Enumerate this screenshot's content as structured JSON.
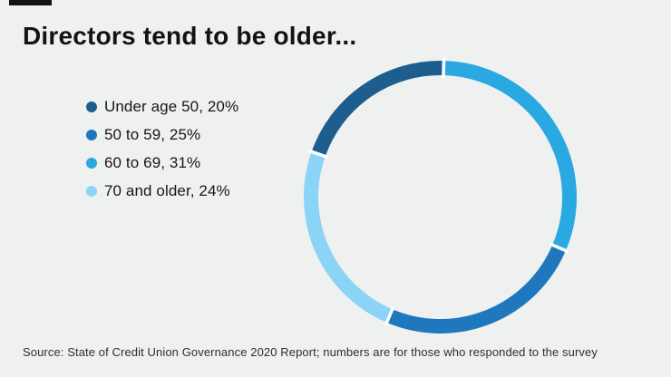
{
  "page": {
    "background": "#eff1f0"
  },
  "header": {
    "title": "Directors tend to be older...",
    "accent_bar_color": "#121212"
  },
  "footer": {
    "source": "Source: State of Credit Union Governance 2020 Report; numbers are for those who responded to the survey"
  },
  "chart_data": {
    "type": "pie",
    "subtype": "donut",
    "title": "Directors tend to be older...",
    "categories": [
      "Under age 50",
      "50 to 59",
      "60 to 69",
      "70 and older"
    ],
    "values": [
      20,
      25,
      31,
      24
    ],
    "unit": "%",
    "colors": [
      "#1d5e8f",
      "#1f78be",
      "#29a8e2",
      "#8bd4f6"
    ],
    "legend_labels": [
      "Under age 50, 20%",
      "50 to 59, 25%",
      "60 to 69, 31%",
      "70 and older, 24%"
    ],
    "legend_position": "left",
    "donut": {
      "start": "top",
      "direction": "clockwise",
      "order_clockwise_from_top": [
        "60 to 69",
        "50 to 59",
        "70 and older",
        "Under age 50"
      ],
      "rotation_deg": 1.5,
      "separator_color": "#ffffff"
    }
  }
}
